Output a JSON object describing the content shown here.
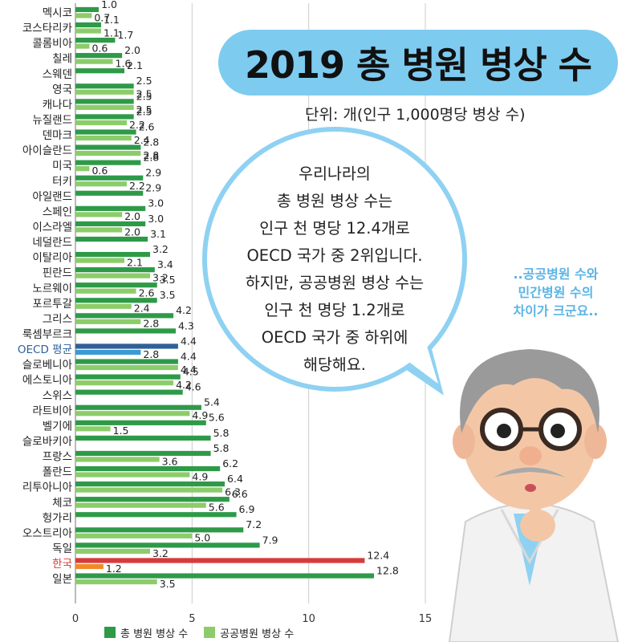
{
  "title": "2019 총 병원 병상 수",
  "unit": "단위: 개(인구 1,000명당 병상 수)",
  "bubble_lines": [
    "우리나라의",
    "총 병원 병상 수는",
    "인구 천 명당 12.4개로",
    "OECD 국가 중 2위입니다.",
    "하지만, 공공병원 병상 수는",
    "인구 천 명당 1.2개로",
    "OECD 국가 중 하위에",
    "해당해요."
  ],
  "side_note": [
    "..공공병원 수와",
    "민간병원 수의",
    "차이가 크군요.."
  ],
  "colors": {
    "total": "#2e9a48",
    "public": "#8ccc6a",
    "oecd_total": "#2f5f97",
    "oecd_public": "#3b9ad6",
    "korea_total": "#d63b3b",
    "korea_public": "#f08a2a",
    "korea_label": "#d63b3b",
    "oecd_label": "#2f5f97",
    "title_pill": "#7ecbf0",
    "bubble_border": "#8fd1f2",
    "side_note": "#5bb4e6"
  },
  "chart_data": {
    "type": "bar",
    "orientation": "horizontal",
    "title": "2019 총 병원 병상 수",
    "xlim": [
      0,
      15
    ],
    "xticks": [
      "0",
      "5",
      "10",
      "15"
    ],
    "grid": "vertical",
    "legend": "bottom",
    "series_names": [
      "총 병원 병상 수",
      "공공병원 병상 수"
    ],
    "rows": [
      {
        "label": "멕시코",
        "total": 1.0,
        "public": 0.7
      },
      {
        "label": "코스타리카",
        "total": 1.1,
        "public": 1.1
      },
      {
        "label": "콜롬비아",
        "total": 1.7,
        "public": 0.6
      },
      {
        "label": "칠레",
        "total": 2.0,
        "public": 1.6
      },
      {
        "label": "스웨덴",
        "total": 2.1,
        "public": null
      },
      {
        "label": "영국",
        "total": 2.5,
        "public": 2.5
      },
      {
        "label": "캐나다",
        "total": 2.5,
        "public": 2.5
      },
      {
        "label": "뉴질랜드",
        "total": 2.5,
        "public": 2.2
      },
      {
        "label": "덴마크",
        "total": 2.6,
        "public": 2.4
      },
      {
        "label": "아이슬란드",
        "total": 2.8,
        "public": 2.8
      },
      {
        "label": "미국",
        "total": 2.8,
        "public": 0.6
      },
      {
        "label": "터키",
        "total": 2.9,
        "public": 2.2
      },
      {
        "label": "아일랜드",
        "total": 2.9,
        "public": null
      },
      {
        "label": "스페인",
        "total": 3.0,
        "public": 2.0
      },
      {
        "label": "이스라엘",
        "total": 3.0,
        "public": 2.0
      },
      {
        "label": "네덜란드",
        "total": 3.1,
        "public": null
      },
      {
        "label": "이탈리아",
        "total": 3.2,
        "public": 2.1
      },
      {
        "label": "핀란드",
        "total": 3.4,
        "public": 3.2
      },
      {
        "label": "노르웨이",
        "total": 3.5,
        "public": 2.6
      },
      {
        "label": "포르투갈",
        "total": 3.5,
        "public": 2.4
      },
      {
        "label": "그리스",
        "total": 4.2,
        "public": 2.8
      },
      {
        "label": "룩셈부르크",
        "total": 4.3,
        "public": null
      },
      {
        "label": "OECD 평균",
        "total": 4.4,
        "public": 2.8,
        "highlight": "oecd"
      },
      {
        "label": "슬로베니아",
        "total": 4.4,
        "public": 4.4
      },
      {
        "label": "에스토니아",
        "total": 4.5,
        "public": 4.2
      },
      {
        "label": "스위스",
        "total": 4.6,
        "public": null
      },
      {
        "label": "라트비아",
        "total": 5.4,
        "public": 4.9
      },
      {
        "label": "벨기에",
        "total": 5.6,
        "public": 1.5
      },
      {
        "label": "슬로바키아",
        "total": 5.8,
        "public": null
      },
      {
        "label": "프랑스",
        "total": 5.8,
        "public": 3.6
      },
      {
        "label": "폴란드",
        "total": 6.2,
        "public": 4.9
      },
      {
        "label": "리투아니아",
        "total": 6.4,
        "public": 6.3
      },
      {
        "label": "체코",
        "total": 6.6,
        "public": 5.6
      },
      {
        "label": "헝가리",
        "total": 6.9,
        "public": null
      },
      {
        "label": "오스트리아",
        "total": 7.2,
        "public": 5.0
      },
      {
        "label": "독일",
        "total": 7.9,
        "public": 3.2
      },
      {
        "label": "한국",
        "total": 12.4,
        "public": 1.2,
        "highlight": "korea"
      },
      {
        "label": "일본",
        "total": 12.8,
        "public": 3.5
      }
    ]
  }
}
